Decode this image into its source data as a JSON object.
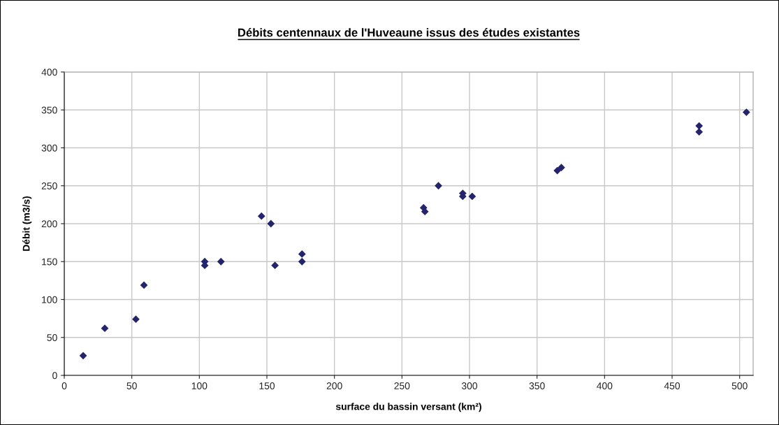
{
  "chart_data": {
    "type": "scatter",
    "title": "Débits centennaux de l'Huveaune issus des études existantes",
    "xlabel": "surface du bassin versant (km²)",
    "ylabel": "Débit (m3/s)",
    "x": [
      14,
      30,
      53,
      59,
      104,
      104,
      116,
      146,
      153,
      156,
      176,
      176,
      266,
      267,
      277,
      295,
      295,
      302,
      365,
      368,
      470,
      470,
      505
    ],
    "series": [
      {
        "color": "#23236e",
        "values": [
          26,
          62,
          74,
          119,
          150,
          145,
          150,
          210,
          200,
          145,
          160,
          150,
          221,
          216,
          250,
          240,
          236,
          236,
          270,
          274,
          329,
          321,
          347
        ]
      }
    ],
    "xlim": [
      0,
      510
    ],
    "xticks": [
      0,
      50,
      100,
      150,
      200,
      250,
      300,
      350,
      400,
      450,
      500
    ],
    "ylim": [
      0,
      400
    ],
    "yticks": [
      0,
      50,
      100,
      150,
      200,
      250,
      300,
      350,
      400
    ],
    "grid": true,
    "marker": "diamond",
    "legend": false
  }
}
